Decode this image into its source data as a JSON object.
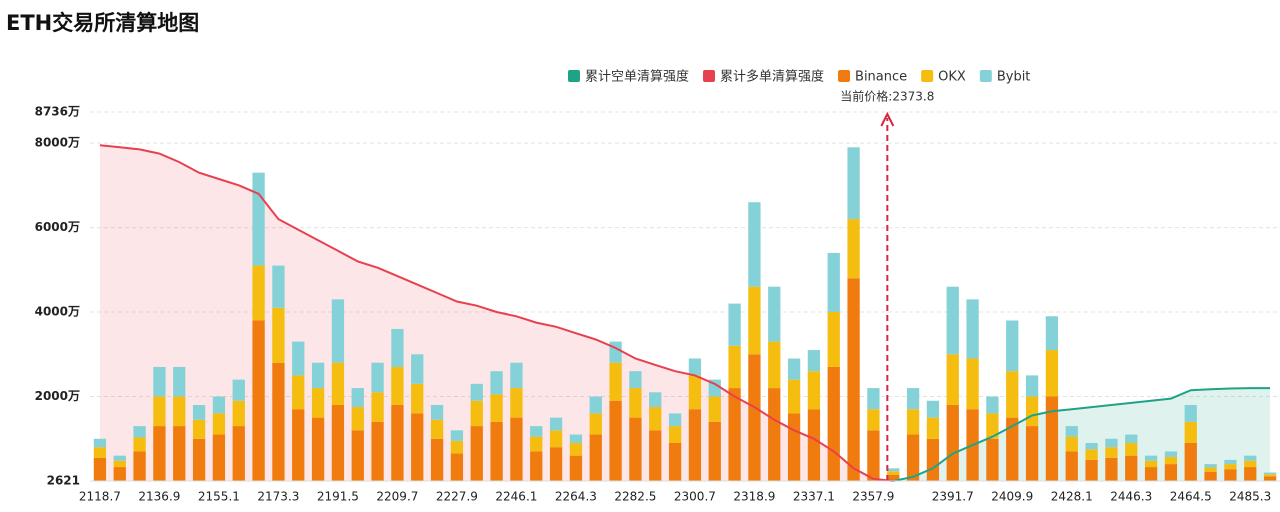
{
  "chart_data": {
    "type": "bar",
    "title": "ETH交易所清算地图",
    "stacked": true,
    "grid": true,
    "legend": "top",
    "annotation": "当前价格:2373.8",
    "ylim": [
      0.2621,
      8736
    ],
    "yticks": [
      {
        "value": 0.2621,
        "label": "2621"
      },
      {
        "value": 2000,
        "label": "2000万"
      },
      {
        "value": 4000,
        "label": "4000万"
      },
      {
        "value": 6000,
        "label": "6000万"
      },
      {
        "value": 8000,
        "label": "8000万"
      },
      {
        "value": 8736,
        "label": "8736万"
      }
    ],
    "categories": [
      "2118.7",
      null,
      null,
      "2136.9",
      null,
      null,
      "2155.1",
      null,
      null,
      "2173.3",
      null,
      null,
      "2191.5",
      null,
      null,
      "2209.7",
      null,
      null,
      "2227.9",
      null,
      null,
      "2246.1",
      null,
      null,
      "2264.3",
      null,
      null,
      "2282.5",
      null,
      null,
      "2300.7",
      null,
      null,
      "2318.9",
      null,
      null,
      "2337.1",
      null,
      null,
      "2357.9",
      null,
      null,
      null,
      "2391.7",
      null,
      null,
      "2409.9",
      null,
      null,
      "2428.1",
      null,
      null,
      "2446.3",
      null,
      null,
      "2464.5",
      null,
      null,
      "2485.3",
      null
    ],
    "lines": [
      {
        "name": "累计空单清算强度",
        "color": "#1fa386",
        "fill": "rgba(31,163,134,0.14)",
        "values": [
          null,
          null,
          null,
          null,
          null,
          null,
          null,
          null,
          null,
          null,
          null,
          null,
          null,
          null,
          null,
          null,
          null,
          null,
          null,
          null,
          null,
          null,
          null,
          null,
          null,
          null,
          null,
          null,
          null,
          null,
          null,
          null,
          null,
          null,
          null,
          null,
          null,
          null,
          null,
          null,
          0,
          100,
          300,
          650,
          850,
          1050,
          1300,
          1550,
          1650,
          1700,
          1750,
          1800,
          1850,
          1900,
          1950,
          2150,
          2170,
          2190,
          2200,
          2200
        ]
      },
      {
        "name": "累计多单清算强度",
        "color": "#e8404f",
        "fill": "rgba(232,64,79,0.13)",
        "values": [
          7950,
          7900,
          7850,
          7750,
          7550,
          7300,
          7150,
          7000,
          6800,
          6200,
          5950,
          5700,
          5450,
          5200,
          5050,
          4850,
          4650,
          4450,
          4250,
          4150,
          4000,
          3900,
          3750,
          3650,
          3500,
          3350,
          3150,
          2900,
          2750,
          2600,
          2500,
          2300,
          2000,
          1750,
          1450,
          1200,
          1000,
          700,
          300,
          50,
          0,
          null,
          null,
          null,
          null,
          null,
          null,
          null,
          null,
          null,
          null,
          null,
          null,
          null,
          null,
          null,
          null,
          null,
          null,
          null
        ]
      }
    ],
    "series": [
      {
        "name": "Binance",
        "color": "#f07c0f",
        "values": [
          550,
          330,
          700,
          1300,
          1300,
          1000,
          1100,
          1300,
          3800,
          2800,
          1700,
          1500,
          1800,
          1200,
          1400,
          1800,
          1600,
          1000,
          650,
          1300,
          1400,
          1500,
          700,
          800,
          600,
          1100,
          1900,
          1500,
          1200,
          900,
          1700,
          1400,
          2200,
          3000,
          2200,
          1600,
          1700,
          2700,
          4800,
          1200,
          150,
          1100,
          1000,
          1800,
          1700,
          1000,
          1500,
          1300,
          2000,
          700,
          500,
          550,
          600,
          330,
          400,
          900,
          220,
          280,
          330,
          110
        ]
      },
      {
        "name": "OKX",
        "color": "#f5bd0f",
        "values": [
          250,
          150,
          330,
          700,
          700,
          450,
          500,
          600,
          1300,
          1300,
          800,
          700,
          1000,
          550,
          700,
          900,
          700,
          450,
          300,
          600,
          650,
          700,
          350,
          400,
          300,
          500,
          900,
          700,
          550,
          400,
          800,
          600,
          1000,
          1600,
          1100,
          800,
          900,
          1300,
          1400,
          500,
          80,
          600,
          500,
          1200,
          1200,
          600,
          1100,
          700,
          1100,
          350,
          250,
          250,
          300,
          150,
          170,
          500,
          100,
          120,
          150,
          50
        ]
      },
      {
        "name": "Bybit",
        "color": "#84d2d8",
        "values": [
          200,
          120,
          270,
          700,
          700,
          350,
          400,
          500,
          2200,
          1000,
          800,
          600,
          1500,
          450,
          700,
          900,
          700,
          350,
          250,
          400,
          550,
          600,
          250,
          300,
          200,
          400,
          500,
          400,
          350,
          300,
          400,
          400,
          1000,
          2000,
          1300,
          500,
          500,
          1400,
          1700,
          500,
          70,
          500,
          400,
          1600,
          1400,
          400,
          1200,
          500,
          800,
          250,
          150,
          200,
          200,
          120,
          130,
          400,
          80,
          100,
          120,
          40
        ]
      }
    ]
  }
}
